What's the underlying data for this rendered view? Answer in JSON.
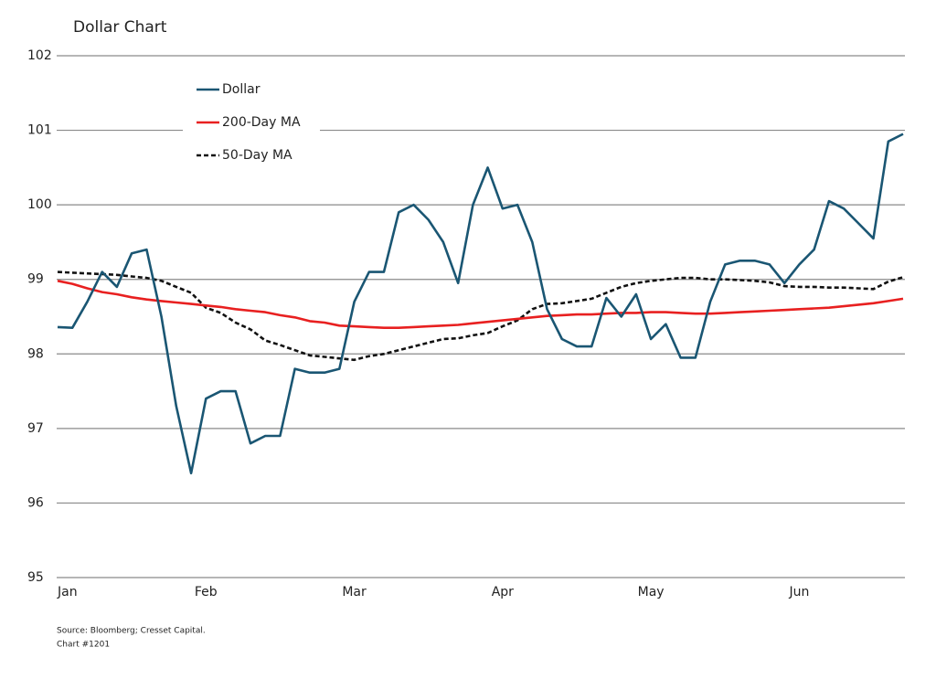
{
  "chart_data": {
    "type": "line",
    "title": "Dollar Chart",
    "source": "Source: Bloomberg; Cresset Capital.",
    "note": "Chart #1201",
    "categories": [
      "Jan",
      null,
      null,
      null,
      null,
      null,
      null,
      null,
      null,
      null,
      "Feb",
      null,
      null,
      null,
      null,
      null,
      null,
      null,
      null,
      null,
      "Mar",
      null,
      null,
      null,
      null,
      null,
      null,
      null,
      null,
      null,
      "Apr",
      null,
      null,
      null,
      null,
      null,
      null,
      null,
      null,
      null,
      "May",
      null,
      null,
      null,
      null,
      null,
      null,
      null,
      null,
      null,
      "Jun",
      null,
      null,
      null,
      null,
      null,
      null,
      null
    ],
    "series": [
      {
        "name": "Dollar",
        "color": "#1a5673",
        "dash": false,
        "values": [
          98.36,
          98.35,
          98.7,
          99.1,
          98.9,
          99.35,
          99.4,
          98.5,
          97.3,
          96.4,
          97.4,
          97.5,
          97.5,
          96.8,
          96.9,
          96.9,
          97.8,
          97.75,
          97.75,
          97.8,
          98.7,
          99.1,
          99.1,
          99.9,
          100.0,
          99.8,
          99.5,
          98.95,
          100.0,
          100.5,
          99.95,
          100.0,
          99.5,
          98.6,
          98.2,
          98.1,
          98.1,
          98.75,
          98.5,
          98.8,
          98.2,
          98.4,
          97.95,
          97.95,
          98.7,
          99.2,
          99.25,
          99.25,
          99.2,
          98.95,
          99.2,
          99.4,
          100.05,
          99.95,
          99.75,
          99.55,
          100.85,
          100.95
        ]
      },
      {
        "name": "200-Day MA",
        "color": "#e82020",
        "dash": false,
        "values": [
          98.98,
          98.94,
          98.88,
          98.83,
          98.8,
          98.76,
          98.73,
          98.71,
          98.69,
          98.67,
          98.65,
          98.63,
          98.6,
          98.58,
          98.56,
          98.52,
          98.49,
          98.44,
          98.42,
          98.38,
          98.37,
          98.36,
          98.35,
          98.35,
          98.36,
          98.37,
          98.38,
          98.39,
          98.41,
          98.43,
          98.45,
          98.47,
          98.49,
          98.51,
          98.52,
          98.53,
          98.53,
          98.54,
          98.55,
          98.55,
          98.56,
          98.56,
          98.55,
          98.54,
          98.54,
          98.55,
          98.56,
          98.57,
          98.58,
          98.59,
          98.6,
          98.61,
          98.62,
          98.64,
          98.66,
          98.68,
          98.71,
          98.74
        ]
      },
      {
        "name": "50-Day MA",
        "color": "#111111",
        "dash": true,
        "values": [
          99.1,
          99.09,
          99.08,
          99.07,
          99.06,
          99.04,
          99.02,
          98.98,
          98.9,
          98.82,
          98.62,
          98.55,
          98.42,
          98.33,
          98.18,
          98.12,
          98.05,
          97.98,
          97.96,
          97.94,
          97.92,
          97.97,
          98.0,
          98.05,
          98.1,
          98.15,
          98.2,
          98.21,
          98.25,
          98.28,
          98.37,
          98.45,
          98.6,
          98.67,
          98.68,
          98.71,
          98.74,
          98.82,
          98.9,
          98.95,
          98.98,
          99.0,
          99.02,
          99.02,
          99.0,
          99.0,
          98.99,
          98.98,
          98.96,
          98.91,
          98.9,
          98.9,
          98.89,
          98.89,
          98.88,
          98.87,
          98.97,
          99.03
        ]
      }
    ],
    "ylim": [
      95,
      102
    ],
    "yticks": [
      95,
      96,
      97,
      98,
      99,
      100,
      101,
      102
    ],
    "grid": true,
    "legend": "upper left"
  }
}
